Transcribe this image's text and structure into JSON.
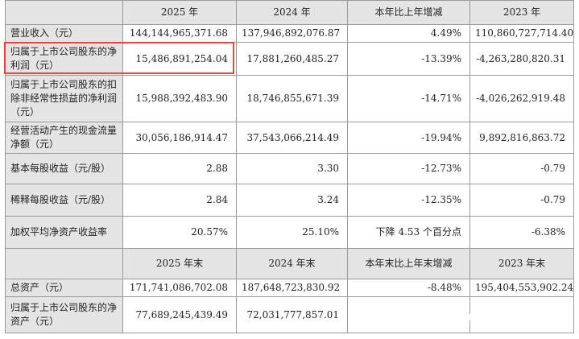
{
  "header1": {
    "c1": "2025 年",
    "c2": "2024 年",
    "c3": "本年比上年增减",
    "c4": "2023 年"
  },
  "rows": [
    {
      "label": "营业收入（元）",
      "v1": "144,144,965,371.68",
      "v2": "137,946,892,076.87",
      "v3": "4.49%",
      "v4": "110,860,727,714.40"
    },
    {
      "label": "归属于上市公司股东的净利润（元）",
      "v1": "15,486,891,254.04",
      "v2": "17,881,260,485.27",
      "v3": "-13.39%",
      "v4": "-4,263,280,820.31"
    },
    {
      "label": "归属于上市公司股东的扣除非经常性损益的净利润（元）",
      "v1": "15,988,392,483.90",
      "v2": "18,746,855,671.39",
      "v3": "-14.71%",
      "v4": "-4,026,262,919.48"
    },
    {
      "label": "经营活动产生的现金流量净额（元）",
      "v1": "30,056,186,914.47",
      "v2": "37,543,066,214.49",
      "v3": "-19.94%",
      "v4": "9,892,816,863.72"
    },
    {
      "label": "基本每股收益（元/股）",
      "v1": "2.88",
      "v2": "3.30",
      "v3": "-12.73%",
      "v4": "-0.79"
    },
    {
      "label": "稀释每股收益（元/股）",
      "v1": "2.84",
      "v2": "3.24",
      "v3": "-12.35%",
      "v4": "-0.79"
    },
    {
      "label": "加权平均净资产收益率",
      "v1": "20.57%",
      "v2": "25.10%",
      "v3": "下降 4.53 个百分点",
      "v4": "-6.38%"
    }
  ],
  "header2": {
    "c1": "2025 年末",
    "c2": "2024 年末",
    "c3": "本年末比上年末增减",
    "c4": "2023 年末"
  },
  "rows2": [
    {
      "label": "总资产（元）",
      "v1": "171,741,086,702.08",
      "v2": "187,648,723,830.92",
      "v3": "-8.48%",
      "v4": "195,404,553,902.24"
    },
    {
      "label": "归属于上市公司股东的净资产（元）",
      "v1": "77,689,245,439.49",
      "v2": "72,031,777,857.01",
      "v3": "",
      "v4": ""
    }
  ],
  "colors": {
    "highlight": "#e8453c",
    "header_bg": "#e4e4e4"
  }
}
